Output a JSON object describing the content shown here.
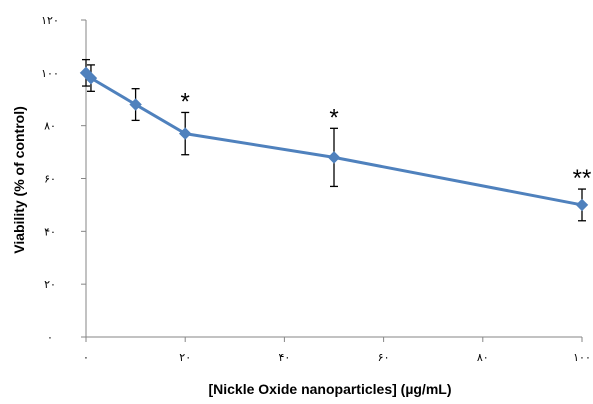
{
  "chart_data": {
    "type": "line",
    "title": "",
    "xlabel": "[Nickle Oxide nanoparticles] (µg/mL)",
    "ylabel": "Viability (% of control)",
    "xlim": [
      0,
      100
    ],
    "ylim": [
      0,
      120
    ],
    "x_ticks": [
      0,
      20,
      40,
      60,
      80,
      100
    ],
    "x_tick_labels": [
      "۰",
      "۲۰",
      "۴۰",
      "۶۰",
      "۸۰",
      "۱۰۰"
    ],
    "y_ticks": [
      0,
      20,
      40,
      60,
      80,
      100,
      120
    ],
    "y_tick_labels": [
      "۰",
      "۲۰",
      "۴۰",
      "۶۰",
      "۸۰",
      "۱۰۰",
      "۱۲۰"
    ],
    "grid": false,
    "legend": "none",
    "series": [
      {
        "color": "#4f81bd",
        "x": [
          0,
          1,
          10,
          20,
          50,
          100
        ],
        "y": [
          100,
          98,
          88,
          77,
          68,
          50
        ],
        "error": [
          5,
          5,
          6,
          8,
          11,
          6
        ],
        "significance": [
          "",
          "",
          "",
          "*",
          "*",
          "**"
        ]
      }
    ]
  }
}
